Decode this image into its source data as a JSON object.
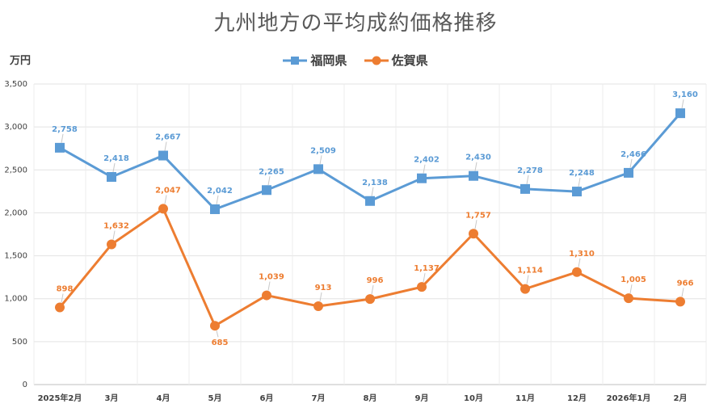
{
  "chart_data": {
    "type": "line",
    "title": "九州地方の平均成約価格推移",
    "ylabel": "万円",
    "xlabel": "",
    "ylim": [
      0,
      3500
    ],
    "yticks": [
      0,
      500,
      1000,
      1500,
      2000,
      2500,
      3000,
      3500
    ],
    "ytick_labels": [
      "0",
      "500",
      "1,000",
      "1,500",
      "2,000",
      "2,500",
      "3,000",
      "3,500"
    ],
    "categories": [
      "2025年2月",
      "3月",
      "4月",
      "5月",
      "6月",
      "7月",
      "8月",
      "9月",
      "10月",
      "11月",
      "12月",
      "2026年1月",
      "2月"
    ],
    "legend_position": "top-center",
    "grid": true,
    "series": [
      {
        "name": "福岡県",
        "color": "#5b9bd5",
        "marker": "square",
        "values": [
          2758,
          2418,
          2667,
          2042,
          2265,
          2509,
          2138,
          2402,
          2430,
          2278,
          2248,
          2466,
          3160
        ],
        "labels": [
          "2,758",
          "2,418",
          "2,667",
          "2,042",
          "2,265",
          "2,509",
          "2,138",
          "2,402",
          "2,430",
          "2,278",
          "2,248",
          "2,466",
          "3,160"
        ]
      },
      {
        "name": "佐賀県",
        "color": "#ed7d31",
        "marker": "circle",
        "values": [
          898,
          1632,
          2047,
          685,
          1039,
          913,
          996,
          1137,
          1757,
          1114,
          1310,
          1005,
          966
        ],
        "labels": [
          "898",
          "1,632",
          "2,047",
          "685",
          "1,039",
          "913",
          "996",
          "1,137",
          "1,757",
          "1,114",
          "1,310",
          "1,005",
          "966"
        ]
      }
    ]
  }
}
